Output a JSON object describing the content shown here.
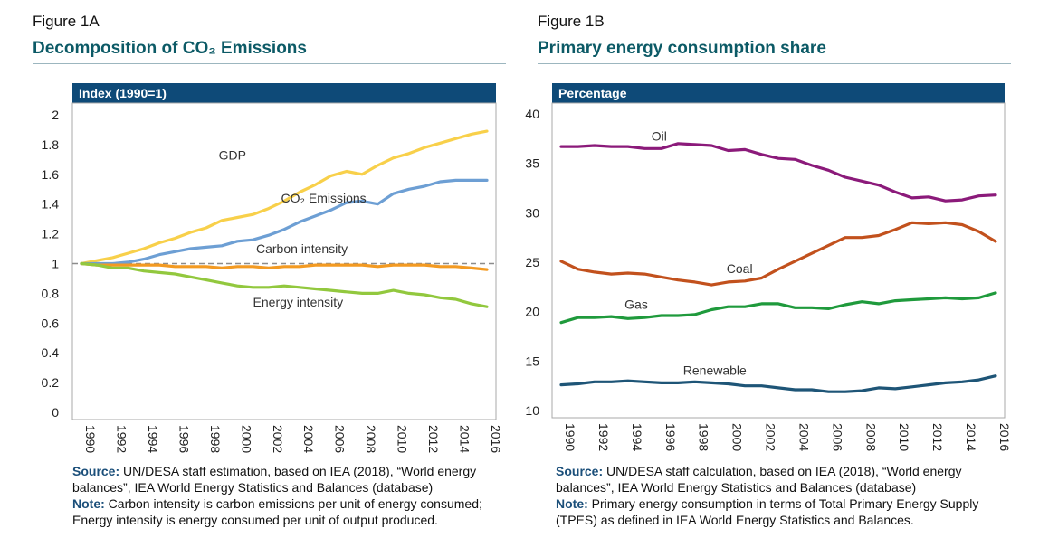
{
  "figure_a": {
    "label": "Figure 1A",
    "title": "Decomposition of CO₂ Emissions",
    "source_key": "Source:",
    "source_text": " UN/DESA staff estimation, based on IEA (2018), “World energy balances”, IEA World Energy Statistics and Balances (database)",
    "note_key": "Note:",
    "note_text": " Carbon intensity is carbon emissions per unit of energy consumed; Energy intensity is energy consumed per unit of output produced."
  },
  "figure_b": {
    "label": "Figure 1B",
    "title": "Primary energy consumption share",
    "source_key": "Source:",
    "source_text": " UN/DESA staff calculation, based on IEA (2018), “World energy balances”, IEA World Energy Statistics and Balances (database)",
    "note_key": "Note:",
    "note_text": " Primary energy consumption in terms of Total Primary Energy Supply (TPES) as defined in IEA World Energy Statistics and Balances."
  },
  "chart_data": [
    {
      "type": "line",
      "header": "Index (1990=1)",
      "ylim": [
        0,
        2
      ],
      "yticks": [
        "0",
        "0.2",
        "0.4",
        "0.6",
        "0.8",
        "1",
        "1.2",
        "1.4",
        "1.6",
        "1.8",
        "2"
      ],
      "x": [
        1990,
        1991,
        1992,
        1993,
        1994,
        1995,
        1996,
        1997,
        1998,
        1999,
        2000,
        2001,
        2002,
        2003,
        2004,
        2005,
        2006,
        2007,
        2008,
        2009,
        2010,
        2011,
        2012,
        2013,
        2014,
        2015,
        2016
      ],
      "xticks": [
        "1990",
        "1992",
        "1994",
        "1996",
        "1998",
        "2000",
        "2002",
        "2004",
        "2006",
        "2008",
        "2010",
        "2012",
        "2014",
        "2016"
      ],
      "reference_line": {
        "value": 1,
        "color": "#8c8c8c"
      },
      "series": [
        {
          "name": "GDP",
          "color": "#f8d04a",
          "label_x": 1998.8,
          "label_y": 1.7,
          "values": [
            1.0,
            1.02,
            1.04,
            1.07,
            1.1,
            1.14,
            1.17,
            1.21,
            1.24,
            1.29,
            1.31,
            1.33,
            1.37,
            1.42,
            1.48,
            1.53,
            1.59,
            1.62,
            1.6,
            1.66,
            1.71,
            1.74,
            1.78,
            1.81,
            1.84,
            1.87,
            1.89
          ]
        },
        {
          "name": "CO₂ Emissions",
          "color": "#6d9fd4",
          "label_x": 2002.8,
          "label_y": 1.41,
          "values": [
            1.0,
            1.0,
            1.0,
            1.01,
            1.03,
            1.06,
            1.08,
            1.1,
            1.11,
            1.12,
            1.15,
            1.16,
            1.19,
            1.23,
            1.28,
            1.32,
            1.36,
            1.41,
            1.42,
            1.4,
            1.47,
            1.5,
            1.52,
            1.55,
            1.56,
            1.56,
            1.56
          ]
        },
        {
          "name": "Carbon intensity",
          "color": "#f39a22",
          "label_x": 2001.2,
          "label_y": 1.07,
          "values": [
            1.0,
            0.99,
            0.99,
            0.99,
            0.99,
            0.99,
            0.98,
            0.98,
            0.98,
            0.97,
            0.98,
            0.98,
            0.97,
            0.98,
            0.98,
            0.99,
            0.99,
            0.99,
            0.99,
            0.98,
            0.99,
            0.99,
            0.99,
            0.98,
            0.98,
            0.97,
            0.96
          ]
        },
        {
          "name": "Energy intensity",
          "color": "#92c83e",
          "label_x": 2001.0,
          "label_y": 0.71,
          "values": [
            1.0,
            0.99,
            0.97,
            0.97,
            0.95,
            0.94,
            0.93,
            0.91,
            0.89,
            0.87,
            0.85,
            0.84,
            0.84,
            0.85,
            0.84,
            0.83,
            0.82,
            0.81,
            0.8,
            0.8,
            0.82,
            0.8,
            0.79,
            0.77,
            0.76,
            0.73,
            0.71
          ]
        }
      ]
    },
    {
      "type": "line",
      "header": "Percentage",
      "ylim": [
        10,
        40
      ],
      "yticks": [
        "10",
        "15",
        "20",
        "25",
        "30",
        "35",
        "40"
      ],
      "x": [
        1990,
        1991,
        1992,
        1993,
        1994,
        1995,
        1996,
        1997,
        1998,
        1999,
        2000,
        2001,
        2002,
        2003,
        2004,
        2005,
        2006,
        2007,
        2008,
        2009,
        2010,
        2011,
        2012,
        2013,
        2014,
        2015,
        2016
      ],
      "xticks": [
        "1990",
        "1992",
        "1994",
        "1996",
        "1998",
        "2000",
        "2002",
        "2004",
        "2006",
        "2008",
        "2010",
        "2012",
        "2014",
        "2016"
      ],
      "series": [
        {
          "name": "Oil",
          "color": "#8b1a7a",
          "label_x": 1995.4,
          "label_y": 37.3,
          "values": [
            36.7,
            36.7,
            36.8,
            36.7,
            36.7,
            36.5,
            36.5,
            37.0,
            36.9,
            36.8,
            36.3,
            36.4,
            35.9,
            35.5,
            35.4,
            34.8,
            34.3,
            33.6,
            33.2,
            32.8,
            32.1,
            31.5,
            31.6,
            31.2,
            31.3,
            31.7,
            31.8
          ]
        },
        {
          "name": "Coal",
          "color": "#c2511d",
          "label_x": 1999.9,
          "label_y": 23.9,
          "values": [
            25.1,
            24.3,
            24.0,
            23.8,
            23.9,
            23.8,
            23.5,
            23.2,
            23.0,
            22.7,
            23.0,
            23.1,
            23.4,
            24.3,
            25.1,
            25.9,
            26.7,
            27.5,
            27.5,
            27.7,
            28.3,
            29.0,
            28.9,
            29.0,
            28.8,
            28.1,
            27.1
          ]
        },
        {
          "name": "Gas",
          "color": "#1f9a3c",
          "label_x": 1993.8,
          "label_y": 20.3,
          "values": [
            18.9,
            19.4,
            19.4,
            19.5,
            19.3,
            19.4,
            19.6,
            19.6,
            19.7,
            20.2,
            20.5,
            20.5,
            20.8,
            20.8,
            20.4,
            20.4,
            20.3,
            20.7,
            21.0,
            20.8,
            21.1,
            21.2,
            21.3,
            21.4,
            21.3,
            21.4,
            21.9
          ]
        },
        {
          "name": "Renewable",
          "color": "#1e5577",
          "label_x": 1997.3,
          "label_y": 13.6,
          "values": [
            12.6,
            12.7,
            12.9,
            12.9,
            13.0,
            12.9,
            12.8,
            12.8,
            12.9,
            12.8,
            12.7,
            12.5,
            12.5,
            12.3,
            12.1,
            12.1,
            11.9,
            11.9,
            12.0,
            12.3,
            12.2,
            12.4,
            12.6,
            12.8,
            12.9,
            13.1,
            13.5
          ]
        }
      ]
    }
  ]
}
